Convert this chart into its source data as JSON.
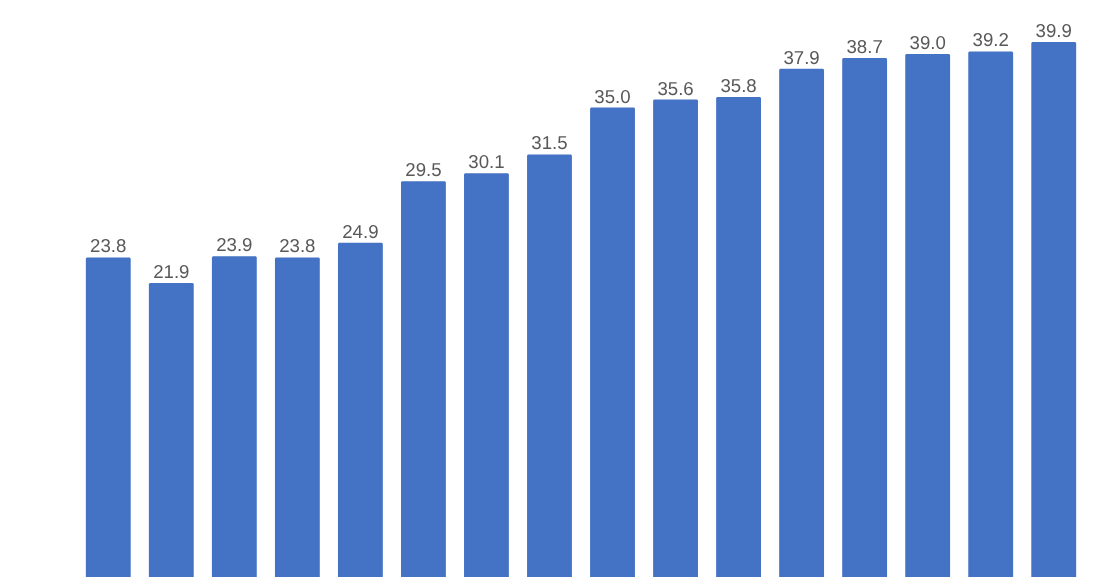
{
  "chart_data": {
    "type": "bar",
    "categories": [
      null,
      null,
      null,
      null,
      null,
      null,
      null,
      null,
      null,
      null,
      null,
      null,
      null,
      null,
      null,
      null
    ],
    "values": [
      23.8,
      21.9,
      23.9,
      23.8,
      24.9,
      29.5,
      30.1,
      31.5,
      35.0,
      35.6,
      35.8,
      37.9,
      38.7,
      39.0,
      39.2,
      39.9
    ],
    "value_labels": [
      "23.8",
      "21.9",
      "23.9",
      "23.8",
      "24.9",
      "29.5",
      "30.1",
      "31.5",
      "35.0",
      "35.6",
      "35.8",
      "37.9",
      "38.7",
      "39.0",
      "39.2",
      "39.9"
    ],
    "color": "#4472c4",
    "grid": false
  }
}
